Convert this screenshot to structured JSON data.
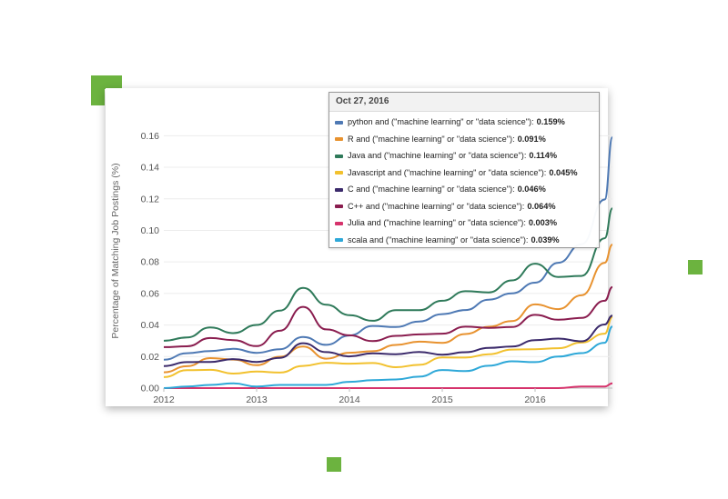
{
  "colors": {
    "accent": "#6cb33f"
  },
  "chart_data": {
    "type": "line",
    "ylabel": "Percentage of Matching Job Postings (%)",
    "xlabel": "",
    "x_ticks": [
      "2012",
      "2013",
      "2014",
      "2015",
      "2016"
    ],
    "y_ticks": [
      "0.00",
      "0.02",
      "0.04",
      "0.06",
      "0.08",
      "0.10",
      "0.12",
      "0.14",
      "0.16"
    ],
    "ylim": [
      0,
      0.17
    ],
    "x": [
      "2012-01",
      "2012-04",
      "2012-07",
      "2012-10",
      "2013-01",
      "2013-04",
      "2013-07",
      "2013-10",
      "2014-01",
      "2014-04",
      "2014-07",
      "2014-10",
      "2015-01",
      "2015-04",
      "2015-07",
      "2015-10",
      "2016-01",
      "2016-04",
      "2016-07",
      "2016-10",
      "2016-11"
    ],
    "grid": true,
    "series": [
      {
        "name": "python and (\"machine learning\" or \"data science\")",
        "color": "#4e79b4",
        "values": [
          0.018,
          0.021,
          0.025,
          0.024,
          0.022,
          0.026,
          0.031,
          0.028,
          0.034,
          0.038,
          0.04,
          0.042,
          0.046,
          0.051,
          0.055,
          0.06,
          0.068,
          0.078,
          0.092,
          0.12,
          0.159
        ]
      },
      {
        "name": "R and (\"machine learning\" or \"data science\")",
        "color": "#e8922f",
        "values": [
          0.01,
          0.015,
          0.019,
          0.017,
          0.016,
          0.019,
          0.026,
          0.02,
          0.021,
          0.024,
          0.028,
          0.028,
          0.03,
          0.034,
          0.038,
          0.044,
          0.052,
          0.05,
          0.06,
          0.078,
          0.091
        ]
      },
      {
        "name": "Java and (\"machine learning\" or \"data science\")",
        "color": "#2f7a5a",
        "values": [
          0.03,
          0.033,
          0.037,
          0.036,
          0.04,
          0.048,
          0.065,
          0.052,
          0.046,
          0.044,
          0.048,
          0.05,
          0.056,
          0.06,
          0.062,
          0.068,
          0.078,
          0.072,
          0.07,
          0.095,
          0.114
        ]
      },
      {
        "name": "Javascript and (\"machine learning\" or \"data science\")",
        "color": "#f2c12e",
        "values": [
          0.007,
          0.01,
          0.012,
          0.01,
          0.009,
          0.011,
          0.014,
          0.015,
          0.017,
          0.015,
          0.013,
          0.016,
          0.018,
          0.02,
          0.022,
          0.023,
          0.026,
          0.025,
          0.028,
          0.036,
          0.045
        ]
      },
      {
        "name": "C and (\"machine learning\" or \"data science\")",
        "color": "#3b2a6b",
        "values": [
          0.014,
          0.016,
          0.018,
          0.017,
          0.017,
          0.02,
          0.027,
          0.024,
          0.02,
          0.021,
          0.023,
          0.022,
          0.021,
          0.024,
          0.024,
          0.027,
          0.031,
          0.03,
          0.031,
          0.04,
          0.046
        ]
      },
      {
        "name": "C++ and (\"machine learning\" or \"data science\")",
        "color": "#8a1d4f",
        "values": [
          0.026,
          0.028,
          0.031,
          0.03,
          0.028,
          0.035,
          0.052,
          0.038,
          0.032,
          0.031,
          0.033,
          0.033,
          0.036,
          0.038,
          0.038,
          0.04,
          0.045,
          0.044,
          0.045,
          0.054,
          0.064
        ]
      },
      {
        "name": "Julia and (\"machine learning\" or \"data science\")",
        "color": "#d6336c",
        "values": [
          0.0,
          0.0,
          0.0,
          0.0,
          0.0,
          0.0,
          0.0,
          0.0,
          0.0,
          0.0,
          0.0,
          0.0,
          0.0,
          0.0,
          0.0,
          0.0,
          0.0,
          0.0,
          0.001,
          0.001,
          0.003
        ]
      },
      {
        "name": "scala and (\"machine learning\" or \"data science\")",
        "color": "#2ea8d8",
        "values": [
          0.0,
          0.001,
          0.002,
          0.003,
          0.001,
          0.002,
          0.002,
          0.002,
          0.004,
          0.005,
          0.006,
          0.008,
          0.01,
          0.012,
          0.014,
          0.016,
          0.018,
          0.019,
          0.022,
          0.03,
          0.039
        ]
      }
    ]
  },
  "tooltip": {
    "date": "Oct 27, 2016",
    "rows": [
      {
        "label": "python and (\"machine learning\" or \"data science\"):",
        "value": "0.159%",
        "color": "#4e79b4"
      },
      {
        "label": "R and (\"machine learning\" or \"data science\"):",
        "value": "0.091%",
        "color": "#e8922f"
      },
      {
        "label": "Java and (\"machine learning\" or \"data science\"):",
        "value": "0.114%",
        "color": "#2f7a5a"
      },
      {
        "label": "Javascript and (\"machine learning\" or \"data science\"):",
        "value": "0.045%",
        "color": "#f2c12e"
      },
      {
        "label": "C and (\"machine learning\" or \"data science\"):",
        "value": "0.046%",
        "color": "#3b2a6b"
      },
      {
        "label": "C++ and (\"machine learning\" or \"data science\"):",
        "value": "0.064%",
        "color": "#8a1d4f"
      },
      {
        "label": "Julia and (\"machine learning\" or \"data science\"):",
        "value": "0.003%",
        "color": "#d6336c"
      },
      {
        "label": "scala and (\"machine learning\" or \"data science\"):",
        "value": "0.039%",
        "color": "#2ea8d8"
      }
    ]
  }
}
